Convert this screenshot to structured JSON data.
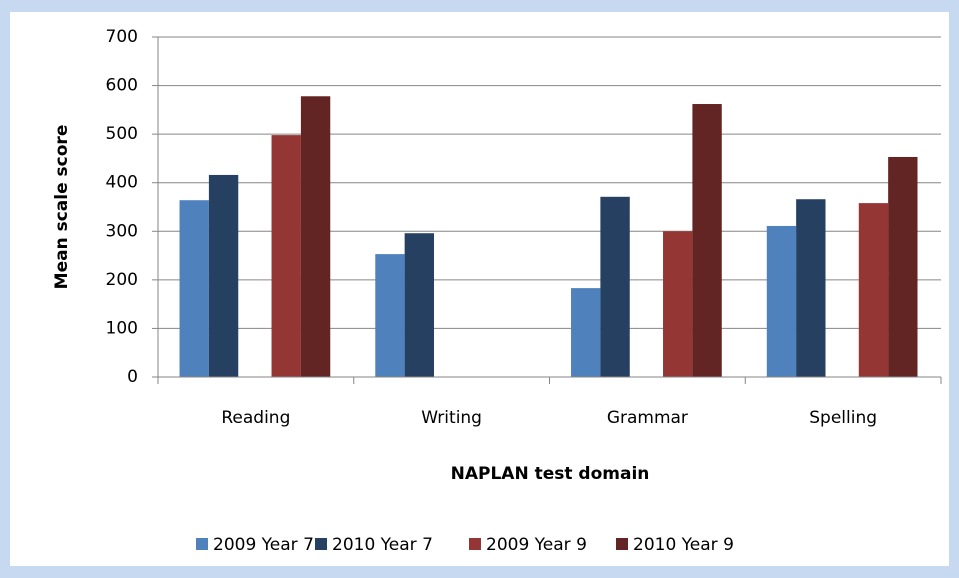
{
  "chart_data": {
    "type": "bar",
    "x_label": "NAPLAN test domain",
    "y_label": "Mean scale score",
    "categories": [
      "Reading",
      "Writing",
      "Grammar",
      "Spelling"
    ],
    "series": [
      {
        "name": "2009 Year 7",
        "color": "#4f81bd",
        "values": [
          364,
          253,
          183,
          311
        ]
      },
      {
        "name": "2010 Year 7",
        "color": "#254061",
        "values": [
          416,
          296,
          371,
          366
        ]
      },
      {
        "name": "2009 Year 9",
        "color": "#943634",
        "values": [
          498,
          null,
          300,
          358
        ]
      },
      {
        "name": "2010 Year 9",
        "color": "#632523",
        "values": [
          578,
          null,
          562,
          453
        ]
      }
    ],
    "ylim": [
      0,
      700
    ],
    "yticks": [
      0,
      100,
      200,
      300,
      400,
      500,
      600,
      700
    ],
    "grid": true
  }
}
